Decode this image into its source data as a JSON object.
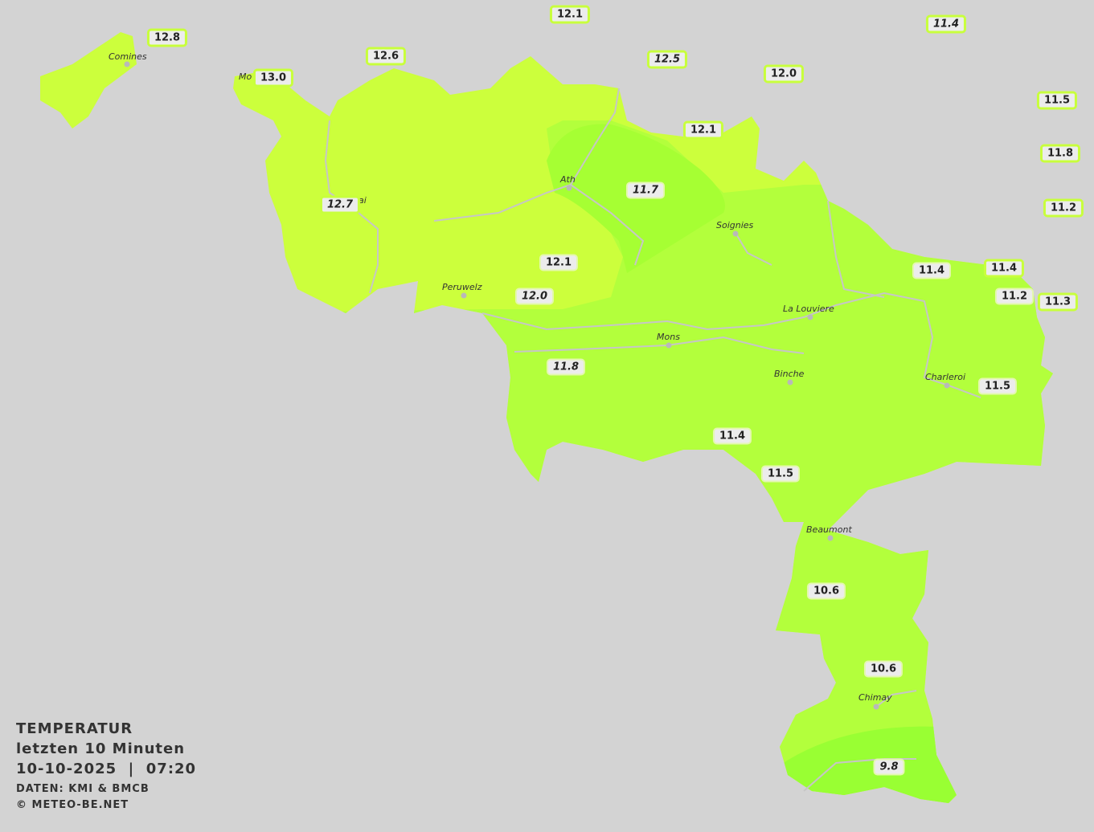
{
  "legend": {
    "title": "TEMPERATUR",
    "subtitle": "letzten 10 Minuten",
    "datetime": "10-10-2025  |  07:20",
    "source": "DATEN: KMI & BMCB",
    "copyright": "© METEO-BE.NET"
  },
  "colors": {
    "background": "#d3d3d3",
    "zone_12_5": "#ccff3c",
    "zone_12_0": "#b3ff3c",
    "zone_11_5": "#a6ff33",
    "zone_10": "#99ff33",
    "label_border": "#c8ff3c"
  },
  "cities": [
    {
      "name": "Comines"
    },
    {
      "name": "Mo"
    },
    {
      "name": "ai"
    },
    {
      "name": "Ath"
    },
    {
      "name": "Soignies"
    },
    {
      "name": "Peruwelz"
    },
    {
      "name": "La Louviere"
    },
    {
      "name": "Mons"
    },
    {
      "name": "Binche"
    },
    {
      "name": "Charleroi"
    },
    {
      "name": "Beaumont"
    },
    {
      "name": "Chimay"
    }
  ],
  "stations": [
    {
      "value": "12.1",
      "italic": false
    },
    {
      "value": "11.4",
      "italic": true
    },
    {
      "value": "12.8",
      "italic": false
    },
    {
      "value": "12.6",
      "italic": false
    },
    {
      "value": "12.5",
      "italic": true
    },
    {
      "value": "13.0",
      "italic": false
    },
    {
      "value": "12.0",
      "italic": false
    },
    {
      "value": "11.5",
      "italic": false
    },
    {
      "value": "12.1",
      "italic": false
    },
    {
      "value": "11.8",
      "italic": false
    },
    {
      "value": "11.7",
      "italic": true
    },
    {
      "value": "12.7",
      "italic": true
    },
    {
      "value": "11.2",
      "italic": false
    },
    {
      "value": "12.1",
      "italic": false
    },
    {
      "value": "11.4",
      "italic": false
    },
    {
      "value": "11.4",
      "italic": false
    },
    {
      "value": "12.0",
      "italic": true
    },
    {
      "value": "11.2",
      "italic": false
    },
    {
      "value": "11.3",
      "italic": false
    },
    {
      "value": "11.8",
      "italic": true
    },
    {
      "value": "11.5",
      "italic": false
    },
    {
      "value": "11.4",
      "italic": false
    },
    {
      "value": "11.5",
      "italic": false
    },
    {
      "value": "10.6",
      "italic": false
    },
    {
      "value": "10.6",
      "italic": false
    },
    {
      "value": "9.8",
      "italic": true
    }
  ]
}
